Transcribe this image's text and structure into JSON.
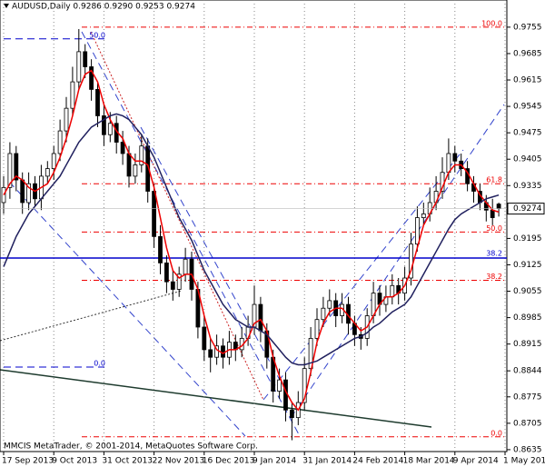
{
  "chart_data": {
    "type": "candlestick",
    "title": "AUDUSD,Daily  0.9286 0.9290 0.9253 0.9274",
    "watermark": "MMCIS MetaTrader, © 2001-2014, MetaQuotes Software Corp.",
    "xlim": [
      0,
      80
    ],
    "xticks": [
      {
        "value": 0,
        "label": "17 Sep 2013"
      },
      {
        "value": 8,
        "label": "9 Oct 2013"
      },
      {
        "value": 16,
        "label": "31 Oct 2013"
      },
      {
        "value": 24,
        "label": "22 Nov 2013"
      },
      {
        "value": 32,
        "label": "16 Dec 2013"
      },
      {
        "value": 40,
        "label": "9 Jan 2014"
      },
      {
        "value": 48,
        "label": "31 Jan 2014"
      },
      {
        "value": 56,
        "label": "24 Feb 2014"
      },
      {
        "value": 64,
        "label": "18 Mar 2014"
      },
      {
        "value": 72,
        "label": "9 Apr 2014"
      },
      {
        "value": 80,
        "label": "1 May 2014"
      }
    ],
    "ylim": [
      0.863,
      0.9827
    ],
    "yticks": [
      0.9755,
      0.9685,
      0.9615,
      0.9545,
      0.9475,
      0.9405,
      0.9335,
      0.9195,
      0.9125,
      0.9055,
      0.8985,
      0.8915,
      0.8844,
      0.8775,
      0.8705,
      0.8635
    ],
    "up_color": "#ffffff",
    "down_color": "#000000",
    "open": [
      0.929,
      0.933,
      0.942,
      0.935,
      0.929,
      0.934,
      0.93,
      0.936,
      0.938,
      0.942,
      0.948,
      0.954,
      0.961,
      0.969,
      0.965,
      0.959,
      0.952,
      0.947,
      0.95,
      0.945,
      0.942,
      0.936,
      0.939,
      0.944,
      0.932,
      0.92,
      0.913,
      0.908,
      0.906,
      0.91,
      0.914,
      0.906,
      0.896,
      0.89,
      0.888,
      0.891,
      0.888,
      0.892,
      0.89,
      0.893,
      0.896,
      0.902,
      0.895,
      0.888,
      0.879,
      0.882,
      0.874,
      0.872,
      0.876,
      0.885,
      0.893,
      0.898,
      0.901,
      0.903,
      0.899,
      0.902,
      0.897,
      0.894,
      0.893,
      0.899,
      0.905,
      0.902,
      0.904,
      0.907,
      0.905,
      0.909,
      0.918,
      0.925,
      0.926,
      0.929,
      0.932,
      0.937,
      0.942,
      0.94,
      0.938,
      0.934,
      0.932,
      0.929,
      0.927,
      0.9286
    ],
    "high": [
      0.936,
      0.945,
      0.944,
      0.937,
      0.937,
      0.936,
      0.939,
      0.94,
      0.944,
      0.951,
      0.957,
      0.965,
      0.975,
      0.971,
      0.967,
      0.961,
      0.955,
      0.953,
      0.952,
      0.948,
      0.944,
      0.942,
      0.947,
      0.946,
      0.934,
      0.923,
      0.915,
      0.911,
      0.912,
      0.917,
      0.916,
      0.908,
      0.899,
      0.893,
      0.894,
      0.893,
      0.895,
      0.894,
      0.896,
      0.899,
      0.907,
      0.904,
      0.897,
      0.89,
      0.885,
      0.884,
      0.876,
      0.879,
      0.888,
      0.896,
      0.901,
      0.904,
      0.906,
      0.905,
      0.905,
      0.904,
      0.899,
      0.896,
      0.901,
      0.908,
      0.907,
      0.907,
      0.91,
      0.909,
      0.912,
      0.921,
      0.928,
      0.929,
      0.933,
      0.936,
      0.941,
      0.946,
      0.944,
      0.942,
      0.94,
      0.936,
      0.934,
      0.931,
      0.93,
      0.929
    ],
    "low": [
      0.926,
      0.93,
      0.932,
      0.926,
      0.927,
      0.928,
      0.927,
      0.934,
      0.935,
      0.94,
      0.945,
      0.952,
      0.959,
      0.962,
      0.956,
      0.949,
      0.944,
      0.945,
      0.942,
      0.939,
      0.933,
      0.934,
      0.937,
      0.929,
      0.917,
      0.91,
      0.905,
      0.903,
      0.904,
      0.908,
      0.903,
      0.893,
      0.887,
      0.884,
      0.886,
      0.885,
      0.886,
      0.887,
      0.888,
      0.891,
      0.894,
      0.892,
      0.885,
      0.876,
      0.877,
      0.871,
      0.866,
      0.87,
      0.874,
      0.883,
      0.891,
      0.896,
      0.899,
      0.896,
      0.897,
      0.894,
      0.891,
      0.89,
      0.891,
      0.897,
      0.899,
      0.9,
      0.902,
      0.902,
      0.903,
      0.907,
      0.916,
      0.923,
      0.924,
      0.927,
      0.93,
      0.935,
      0.937,
      0.936,
      0.932,
      0.929,
      0.927,
      0.924,
      0.923,
      0.9253
    ],
    "close": [
      0.933,
      0.942,
      0.935,
      0.929,
      0.934,
      0.93,
      0.936,
      0.938,
      0.942,
      0.948,
      0.954,
      0.961,
      0.969,
      0.965,
      0.959,
      0.952,
      0.947,
      0.95,
      0.945,
      0.942,
      0.936,
      0.939,
      0.944,
      0.932,
      0.92,
      0.913,
      0.908,
      0.906,
      0.91,
      0.914,
      0.906,
      0.896,
      0.89,
      0.888,
      0.891,
      0.888,
      0.892,
      0.89,
      0.893,
      0.896,
      0.902,
      0.895,
      0.888,
      0.879,
      0.882,
      0.874,
      0.872,
      0.876,
      0.885,
      0.893,
      0.898,
      0.901,
      0.903,
      0.899,
      0.902,
      0.897,
      0.894,
      0.893,
      0.899,
      0.905,
      0.902,
      0.904,
      0.907,
      0.905,
      0.909,
      0.918,
      0.925,
      0.926,
      0.929,
      0.932,
      0.937,
      0.942,
      0.94,
      0.938,
      0.934,
      0.932,
      0.929,
      0.927,
      0.925,
      0.9274
    ],
    "moving_averages": [
      {
        "color": "#ee0000",
        "values": [
          0.931,
          0.934,
          0.936,
          0.935,
          0.933,
          0.932,
          0.933,
          0.934,
          0.937,
          0.941,
          0.946,
          0.952,
          0.959,
          0.963,
          0.964,
          0.961,
          0.955,
          0.951,
          0.948,
          0.946,
          0.942,
          0.94,
          0.94,
          0.939,
          0.933,
          0.925,
          0.917,
          0.911,
          0.909,
          0.91,
          0.91,
          0.906,
          0.899,
          0.893,
          0.89,
          0.889,
          0.89,
          0.89,
          0.891,
          0.893,
          0.897,
          0.898,
          0.895,
          0.888,
          0.883,
          0.879,
          0.876,
          0.874,
          0.877,
          0.884,
          0.892,
          0.897,
          0.9,
          0.901,
          0.901,
          0.899,
          0.897,
          0.895,
          0.896,
          0.899,
          0.902,
          0.904,
          0.904,
          0.905,
          0.907,
          0.911,
          0.917,
          0.923,
          0.926,
          0.929,
          0.933,
          0.937,
          0.939,
          0.939,
          0.937,
          0.934,
          0.931,
          0.929,
          0.927,
          0.9265
        ]
      },
      {
        "color": "#20205e",
        "values": [
          0.912,
          0.916,
          0.92,
          0.923,
          0.926,
          0.928,
          0.93,
          0.932,
          0.934,
          0.936,
          0.939,
          0.942,
          0.945,
          0.947,
          0.949,
          0.95,
          0.951,
          0.952,
          0.9525,
          0.952,
          0.951,
          0.949,
          0.947,
          0.944,
          0.941,
          0.937,
          0.933,
          0.929,
          0.925,
          0.922,
          0.919,
          0.915,
          0.911,
          0.908,
          0.905,
          0.902,
          0.9,
          0.898,
          0.897,
          0.896,
          0.896,
          0.895,
          0.894,
          0.892,
          0.89,
          0.888,
          0.8865,
          0.886,
          0.886,
          0.8865,
          0.887,
          0.888,
          0.889,
          0.89,
          0.891,
          0.892,
          0.893,
          0.8935,
          0.8945,
          0.896,
          0.897,
          0.8985,
          0.9,
          0.901,
          0.902,
          0.904,
          0.907,
          0.91,
          0.913,
          0.916,
          0.919,
          0.922,
          0.9245,
          0.926,
          0.927,
          0.928,
          0.929,
          0.93,
          0.9305,
          0.931
        ]
      }
    ],
    "fibo_color": "#ee0000",
    "fibo_levels": [
      {
        "label": "100.0",
        "value": 0.9755
      },
      {
        "label": "61.8",
        "value": 0.934
      },
      {
        "label": "50.0",
        "value": 0.9212
      },
      {
        "label": "38.2",
        "value": 0.9084
      },
      {
        "label": "0.0",
        "value": 0.8669
      }
    ],
    "left_fibo_color": "#0000cc",
    "left_fibo_levels": [
      {
        "label": "50.0",
        "value": 0.9724
      },
      {
        "label": "0.0",
        "value": 0.8854
      }
    ],
    "level_line": {
      "label": "38.2",
      "value": 0.9143,
      "color": "#0000cc"
    }
  }
}
